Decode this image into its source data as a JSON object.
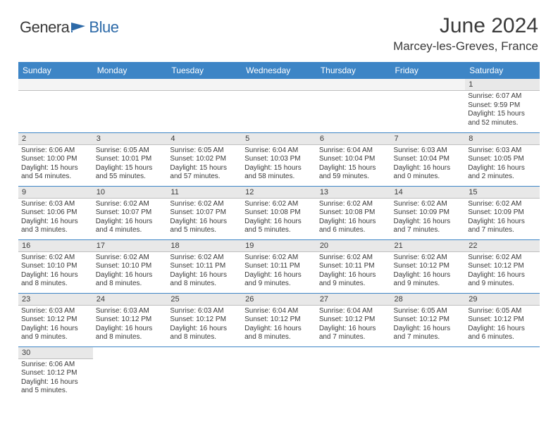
{
  "brand": {
    "main": "Genera",
    "blue": "Blue"
  },
  "title": "June 2024",
  "location": "Marcey-les-Greves, France",
  "colors": {
    "header_bg": "#3d85c6",
    "header_text": "#ffffff",
    "daynum_bg": "#e8e8e8",
    "row_border": "#3d85c6",
    "text": "#3a3a3a",
    "brand_blue": "#2d6aa8"
  },
  "weekdays": [
    "Sunday",
    "Monday",
    "Tuesday",
    "Wednesday",
    "Thursday",
    "Friday",
    "Saturday"
  ],
  "weeks": [
    [
      null,
      null,
      null,
      null,
      null,
      null,
      {
        "n": "1",
        "sr": "Sunrise: 6:07 AM",
        "ss": "Sunset: 9:59 PM",
        "dl": "Daylight: 15 hours and 52 minutes."
      }
    ],
    [
      {
        "n": "2",
        "sr": "Sunrise: 6:06 AM",
        "ss": "Sunset: 10:00 PM",
        "dl": "Daylight: 15 hours and 54 minutes."
      },
      {
        "n": "3",
        "sr": "Sunrise: 6:05 AM",
        "ss": "Sunset: 10:01 PM",
        "dl": "Daylight: 15 hours and 55 minutes."
      },
      {
        "n": "4",
        "sr": "Sunrise: 6:05 AM",
        "ss": "Sunset: 10:02 PM",
        "dl": "Daylight: 15 hours and 57 minutes."
      },
      {
        "n": "5",
        "sr": "Sunrise: 6:04 AM",
        "ss": "Sunset: 10:03 PM",
        "dl": "Daylight: 15 hours and 58 minutes."
      },
      {
        "n": "6",
        "sr": "Sunrise: 6:04 AM",
        "ss": "Sunset: 10:04 PM",
        "dl": "Daylight: 15 hours and 59 minutes."
      },
      {
        "n": "7",
        "sr": "Sunrise: 6:03 AM",
        "ss": "Sunset: 10:04 PM",
        "dl": "Daylight: 16 hours and 0 minutes."
      },
      {
        "n": "8",
        "sr": "Sunrise: 6:03 AM",
        "ss": "Sunset: 10:05 PM",
        "dl": "Daylight: 16 hours and 2 minutes."
      }
    ],
    [
      {
        "n": "9",
        "sr": "Sunrise: 6:03 AM",
        "ss": "Sunset: 10:06 PM",
        "dl": "Daylight: 16 hours and 3 minutes."
      },
      {
        "n": "10",
        "sr": "Sunrise: 6:02 AM",
        "ss": "Sunset: 10:07 PM",
        "dl": "Daylight: 16 hours and 4 minutes."
      },
      {
        "n": "11",
        "sr": "Sunrise: 6:02 AM",
        "ss": "Sunset: 10:07 PM",
        "dl": "Daylight: 16 hours and 5 minutes."
      },
      {
        "n": "12",
        "sr": "Sunrise: 6:02 AM",
        "ss": "Sunset: 10:08 PM",
        "dl": "Daylight: 16 hours and 5 minutes."
      },
      {
        "n": "13",
        "sr": "Sunrise: 6:02 AM",
        "ss": "Sunset: 10:08 PM",
        "dl": "Daylight: 16 hours and 6 minutes."
      },
      {
        "n": "14",
        "sr": "Sunrise: 6:02 AM",
        "ss": "Sunset: 10:09 PM",
        "dl": "Daylight: 16 hours and 7 minutes."
      },
      {
        "n": "15",
        "sr": "Sunrise: 6:02 AM",
        "ss": "Sunset: 10:09 PM",
        "dl": "Daylight: 16 hours and 7 minutes."
      }
    ],
    [
      {
        "n": "16",
        "sr": "Sunrise: 6:02 AM",
        "ss": "Sunset: 10:10 PM",
        "dl": "Daylight: 16 hours and 8 minutes."
      },
      {
        "n": "17",
        "sr": "Sunrise: 6:02 AM",
        "ss": "Sunset: 10:10 PM",
        "dl": "Daylight: 16 hours and 8 minutes."
      },
      {
        "n": "18",
        "sr": "Sunrise: 6:02 AM",
        "ss": "Sunset: 10:11 PM",
        "dl": "Daylight: 16 hours and 8 minutes."
      },
      {
        "n": "19",
        "sr": "Sunrise: 6:02 AM",
        "ss": "Sunset: 10:11 PM",
        "dl": "Daylight: 16 hours and 9 minutes."
      },
      {
        "n": "20",
        "sr": "Sunrise: 6:02 AM",
        "ss": "Sunset: 10:11 PM",
        "dl": "Daylight: 16 hours and 9 minutes."
      },
      {
        "n": "21",
        "sr": "Sunrise: 6:02 AM",
        "ss": "Sunset: 10:12 PM",
        "dl": "Daylight: 16 hours and 9 minutes."
      },
      {
        "n": "22",
        "sr": "Sunrise: 6:02 AM",
        "ss": "Sunset: 10:12 PM",
        "dl": "Daylight: 16 hours and 9 minutes."
      }
    ],
    [
      {
        "n": "23",
        "sr": "Sunrise: 6:03 AM",
        "ss": "Sunset: 10:12 PM",
        "dl": "Daylight: 16 hours and 9 minutes."
      },
      {
        "n": "24",
        "sr": "Sunrise: 6:03 AM",
        "ss": "Sunset: 10:12 PM",
        "dl": "Daylight: 16 hours and 8 minutes."
      },
      {
        "n": "25",
        "sr": "Sunrise: 6:03 AM",
        "ss": "Sunset: 10:12 PM",
        "dl": "Daylight: 16 hours and 8 minutes."
      },
      {
        "n": "26",
        "sr": "Sunrise: 6:04 AM",
        "ss": "Sunset: 10:12 PM",
        "dl": "Daylight: 16 hours and 8 minutes."
      },
      {
        "n": "27",
        "sr": "Sunrise: 6:04 AM",
        "ss": "Sunset: 10:12 PM",
        "dl": "Daylight: 16 hours and 7 minutes."
      },
      {
        "n": "28",
        "sr": "Sunrise: 6:05 AM",
        "ss": "Sunset: 10:12 PM",
        "dl": "Daylight: 16 hours and 7 minutes."
      },
      {
        "n": "29",
        "sr": "Sunrise: 6:05 AM",
        "ss": "Sunset: 10:12 PM",
        "dl": "Daylight: 16 hours and 6 minutes."
      }
    ],
    [
      {
        "n": "30",
        "sr": "Sunrise: 6:06 AM",
        "ss": "Sunset: 10:12 PM",
        "dl": "Daylight: 16 hours and 5 minutes."
      },
      null,
      null,
      null,
      null,
      null,
      null
    ]
  ]
}
